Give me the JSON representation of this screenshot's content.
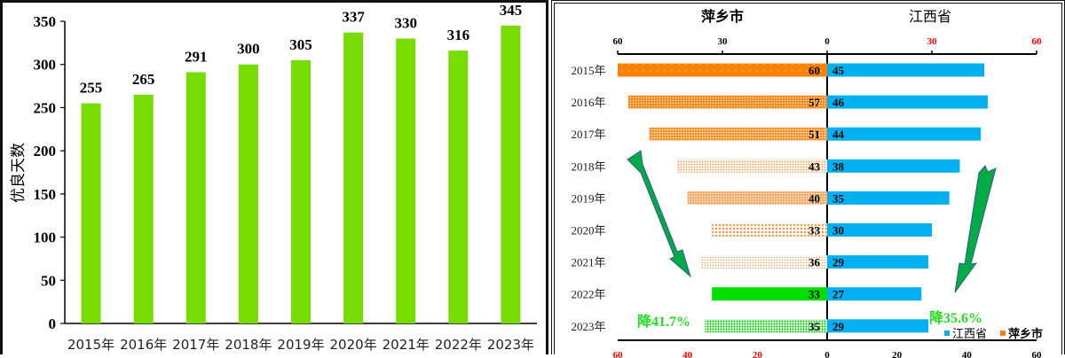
{
  "chart_data": [
    {
      "type": "bar",
      "title": "",
      "xlabel": "",
      "ylabel": "优良天数",
      "ylim": [
        0,
        350
      ],
      "yticks": [
        0,
        50,
        100,
        150,
        200,
        250,
        300,
        350
      ],
      "categories": [
        "2015年",
        "2016年",
        "2017年",
        "2018年",
        "2019年",
        "2020年",
        "2021年",
        "2022年",
        "2023年"
      ],
      "values": [
        255,
        265,
        291,
        300,
        305,
        337,
        330,
        316,
        345
      ],
      "bar_color": "#77dd00",
      "data_labels": true,
      "grid": false
    },
    {
      "type": "bar",
      "orientation": "horizontal-butterfly",
      "categories": [
        "2015年",
        "2016年",
        "2017年",
        "2018年",
        "2019年",
        "2020年",
        "2021年",
        "2022年",
        "2023年"
      ],
      "series": [
        {
          "name": "萍乡市",
          "side": "left",
          "color": "#ff7f00",
          "values": [
            60,
            57,
            51,
            43,
            40,
            33,
            36,
            33,
            35
          ],
          "highlight_colors": {
            "2022年": "#00dd00",
            "2023年": "#00dd00"
          }
        },
        {
          "name": "江西省",
          "side": "right",
          "color": "#00b0f0",
          "values": [
            45,
            46,
            44,
            38,
            35,
            30,
            29,
            27,
            29
          ]
        }
      ],
      "left_title": "萍乡市",
      "right_title": "江西省",
      "top_axis_left_ticks": [
        "60",
        "30",
        "0"
      ],
      "top_axis_right_ticks": [
        "30",
        "60"
      ],
      "bottom_axis_left_ticks": [
        "60",
        "40",
        "20"
      ],
      "bottom_axis_right_ticks": [
        "0",
        "20",
        "40",
        "60"
      ],
      "xlim": [
        0,
        60
      ],
      "annotations": [
        {
          "text": "降41.7%",
          "color": "#22dd22",
          "side": "left"
        },
        {
          "text": "降35.6%",
          "color": "#22dd22",
          "side": "right"
        }
      ],
      "legend": [
        "江西省",
        "萍乡市"
      ],
      "legend_position": "bottom-right"
    }
  ]
}
